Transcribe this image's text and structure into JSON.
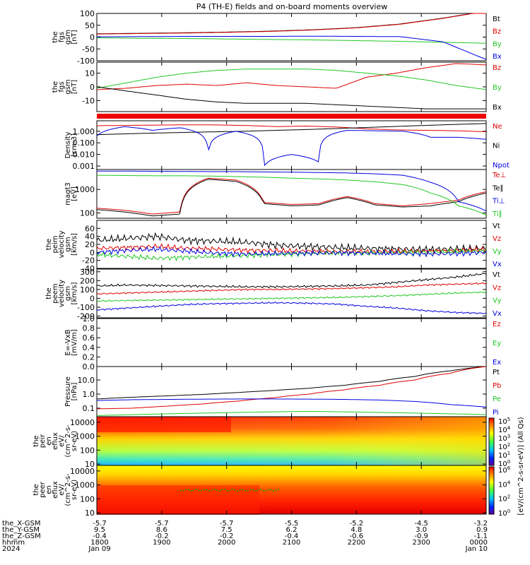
{
  "title": "P4 (TH-E) fields and on-board moments overview",
  "colors": {
    "black": "#000000",
    "red": "#e00000",
    "green": "#22c822",
    "blue": "#0000e0"
  },
  "chart_data": [
    {
      "type": "line",
      "panel": "fgs_gsm_1",
      "ylabel": [
        "the",
        "fgs",
        "gsm",
        "[nT]"
      ],
      "ylim": [
        -100,
        100
      ],
      "yticks": [
        -100,
        -50,
        0,
        50,
        100
      ],
      "series": [
        {
          "name": "Bt",
          "color": "#000000",
          "values": [
            14,
            16,
            18,
            21,
            25,
            31,
            40,
            55,
            80,
            110
          ]
        },
        {
          "name": "Bz",
          "color": "#e00000",
          "values": [
            13,
            15,
            17,
            20,
            24,
            30,
            39,
            54,
            79,
            109
          ]
        },
        {
          "name": "By",
          "color": "#22c822",
          "values": [
            -3,
            -5,
            -6,
            -8,
            -10,
            -12,
            -15,
            -18,
            -22,
            -26
          ]
        },
        {
          "name": "Bx",
          "color": "#0000e0",
          "values": [
            1,
            2,
            3,
            3,
            3,
            4,
            3,
            2,
            -20,
            -95
          ]
        }
      ]
    },
    {
      "type": "line",
      "panel": "fgs_gsm_2",
      "ylabel": [
        "the",
        "fgs",
        "gsm",
        "[nT]"
      ],
      "ylim": [
        -18,
        18
      ],
      "yticks": [
        -10,
        0,
        10
      ],
      "series": [
        {
          "name": "Bz",
          "color": "#e00000",
          "values": [
            -2,
            -1,
            1,
            2,
            1,
            3,
            1,
            0,
            -1,
            7,
            10,
            14,
            17,
            16
          ]
        },
        {
          "name": "By",
          "color": "#22c822",
          "values": [
            -1,
            3,
            7,
            10,
            12,
            13,
            13,
            13,
            12,
            10,
            8,
            5,
            1,
            -2
          ]
        },
        {
          "name": "Bx",
          "color": "#000000",
          "values": [
            0,
            -3,
            -6,
            -9,
            -11,
            -12,
            -12,
            -12,
            -13,
            -14,
            -15,
            -16,
            -16,
            -16
          ]
        }
      ]
    },
    {
      "type": "line",
      "panel": "density",
      "ylabel": [
        "Density",
        "[cm-3]"
      ],
      "scale": "log",
      "ylim": [
        0.0005,
        8
      ],
      "yticks": [
        0.001,
        0.01,
        0.1,
        1.0
      ],
      "tick_labels": [
        "0.001",
        "0.010",
        "0.100",
        "1.000"
      ],
      "series": [
        {
          "name": "Ne",
          "color": "#e00000",
          "values": [
            3,
            3.2,
            3.4,
            3.6,
            3.5,
            3.1,
            2.5,
            2.8,
            2.3,
            1.6,
            1.3,
            1.2,
            1.1,
            0.9
          ]
        },
        {
          "name": "Ni",
          "color": "#000000",
          "values": [
            0.5,
            0.6,
            0.7,
            0.8,
            0.9,
            1.0,
            1.2,
            1.4,
            1.7,
            2.1,
            2.6,
            3.2,
            3.9,
            4.6
          ]
        },
        {
          "name": "Npot",
          "color": "#0000e0",
          "values": [
            0.4,
            2.5,
            1.2,
            2.0,
            0.001,
            1.0,
            0.0008,
            0.01,
            0.002,
            1.2,
            1.1,
            1.0,
            0.3,
            0.3,
            0.2
          ]
        }
      ]
    },
    {
      "type": "line",
      "panel": "temperature",
      "ylabel": [
        "magt3",
        "[eV]"
      ],
      "scale": "log",
      "ylim": [
        60,
        7000
      ],
      "yticks": [
        100,
        1000
      ],
      "tick_labels": [
        "100",
        "1000"
      ],
      "series": [
        {
          "name": "Te⊥",
          "color": "#e00000",
          "values": [
            160,
            130,
            90,
            110,
            3000,
            2500,
            280,
            230,
            250,
            500,
            250,
            200,
            250,
            350,
            800
          ]
        },
        {
          "name": "Te∥",
          "color": "#000000",
          "values": [
            140,
            110,
            75,
            90,
            2700,
            2200,
            250,
            200,
            220,
            450,
            220,
            180,
            200,
            300,
            700
          ]
        },
        {
          "name": "Ti⊥",
          "color": "#0000e0",
          "values": [
            6000,
            6000,
            5900,
            5800,
            5700,
            5700,
            5500,
            5400,
            5200,
            5000,
            4600,
            4000,
            2000,
            300,
            120
          ]
        },
        {
          "name": "Ti∥",
          "color": "#22c822",
          "values": [
            4000,
            3900,
            3800,
            3800,
            3700,
            3500,
            3300,
            3000,
            2800,
            2500,
            2100,
            1600,
            700,
            200,
            80
          ]
        }
      ]
    },
    {
      "type": "line",
      "panel": "peim_velocity",
      "ylabel": [
        "the",
        "peim",
        "velocity",
        "gsm",
        "[km/s]"
      ],
      "ylim": [
        -40,
        80
      ],
      "yticks": [
        -40,
        -20,
        0,
        20,
        40,
        60
      ],
      "series": [
        {
          "name": "Vt",
          "color": "#000000",
          "values": [
            30,
            35,
            40,
            30,
            28,
            25,
            18,
            15,
            12,
            10,
            8,
            7,
            8,
            10
          ]
        },
        {
          "name": "Vz",
          "color": "#e00000",
          "values": [
            10,
            12,
            15,
            10,
            8,
            5,
            4,
            3,
            2,
            2,
            2,
            3,
            5,
            8
          ]
        },
        {
          "name": "Vy",
          "color": "#22c822",
          "values": [
            -5,
            -10,
            -15,
            -12,
            -10,
            -8,
            -5,
            -3,
            -2,
            -1,
            0,
            0,
            2,
            4
          ]
        },
        {
          "name": "Vx",
          "color": "#0000e0",
          "values": [
            0,
            5,
            8,
            3,
            -2,
            -4,
            -3,
            -2,
            -1,
            -2,
            -3,
            -4,
            -3,
            0
          ]
        }
      ]
    },
    {
      "type": "line",
      "panel": "peem_velocity",
      "ylabel": [
        "the",
        "peem",
        "velocity",
        "gsm",
        "[km/s]"
      ],
      "ylim": [
        -220,
        330
      ],
      "yticks": [
        -200,
        -100,
        0,
        100,
        200,
        300
      ],
      "series": [
        {
          "name": "Vt",
          "color": "#000000",
          "values": [
            140,
            150,
            145,
            140,
            135,
            130,
            130,
            135,
            140,
            150,
            180,
            210,
            240,
            280
          ]
        },
        {
          "name": "Vz",
          "color": "#e00000",
          "values": [
            50,
            60,
            70,
            80,
            90,
            100,
            100,
            105,
            110,
            120,
            130,
            150,
            160,
            170
          ]
        },
        {
          "name": "Vy",
          "color": "#22c822",
          "values": [
            -30,
            -25,
            -20,
            -15,
            -10,
            -5,
            0,
            5,
            10,
            20,
            30,
            45,
            60,
            70
          ]
        },
        {
          "name": "Vx",
          "color": "#0000e0",
          "values": [
            -130,
            -110,
            -90,
            -70,
            -60,
            -55,
            -50,
            -55,
            -65,
            -90,
            -110,
            -140,
            -160,
            -170
          ]
        }
      ]
    },
    {
      "type": "line",
      "panel": "efield",
      "ylabel": [
        "E=-VxB",
        "[mV/m]"
      ],
      "ylim": [
        0,
        1
      ],
      "yticks": [
        0.0,
        0.2,
        0.4,
        0.6,
        0.8,
        1.0
      ],
      "tick_labels": [
        "0.0",
        "0.2",
        "0.4",
        "0.6",
        "0.8",
        "1.0"
      ],
      "series": [
        {
          "name": "Ez",
          "color": "#e00000",
          "values": []
        },
        {
          "name": "Ey",
          "color": "#22c822",
          "values": []
        },
        {
          "name": "Ex",
          "color": "#0000e0",
          "values": []
        }
      ]
    },
    {
      "type": "line",
      "panel": "pressure",
      "ylabel": [
        "Pressure",
        "[nPa]"
      ],
      "scale": "log",
      "ylim": [
        0.025,
        90
      ],
      "yticks": [
        0.1,
        1.0,
        10.0
      ],
      "tick_labels": [
        "0.1",
        "1.0",
        "10.0"
      ],
      "series": [
        {
          "name": "Pt",
          "color": "#000000",
          "values": [
            0.45,
            0.6,
            0.75,
            0.95,
            1.3,
            1.8,
            2.6,
            4.2,
            8,
            18,
            45,
            90
          ]
        },
        {
          "name": "Pb",
          "color": "#e00000",
          "values": [
            0.09,
            0.1,
            0.14,
            0.2,
            0.32,
            0.55,
            1.0,
            2.0,
            4.2,
            10,
            30,
            90
          ]
        },
        {
          "name": "Pe",
          "color": "#22c822",
          "values": [
            0.03,
            0.035,
            0.04,
            0.045,
            0.05,
            0.055,
            0.06,
            0.055,
            0.05,
            0.045,
            0.04,
            0.035
          ]
        },
        {
          "name": "Pi",
          "color": "#0000e0",
          "values": [
            0.35,
            0.4,
            0.42,
            0.44,
            0.45,
            0.45,
            0.44,
            0.42,
            0.38,
            0.3,
            0.18,
            0.12
          ]
        }
      ]
    },
    {
      "type": "heatmap",
      "panel": "peir_eflux",
      "ylabel": [
        "the",
        "peir",
        "en",
        "eflux",
        "eV/",
        "(cm^2-s-",
        "sr-eV)"
      ],
      "scale": "log",
      "ylim": [
        8,
        25000
      ],
      "yticks": [
        10,
        100,
        1000,
        10000
      ],
      "tick_labels": [
        "10",
        "100",
        "1000",
        "10000"
      ]
    },
    {
      "type": "heatmap",
      "panel": "peer_eflux",
      "ylabel": [
        "the",
        "peer",
        "en",
        "eflux",
        "eV/",
        "(cm^2-s-",
        "sr-eV)"
      ],
      "scale": "log",
      "ylim": [
        8,
        25000
      ],
      "yticks": [
        10,
        100,
        1000,
        10000
      ],
      "tick_labels": [
        "10",
        "100",
        "1000",
        "10000"
      ]
    }
  ],
  "colorbar": {
    "label": "[eV/(cm^2-s-sr-eV)] (All Qs)",
    "upper_ticks": [
      "10",
      "10",
      "10",
      "10",
      "10",
      "10"
    ],
    "upper_exps": [
      "0",
      "1",
      "2",
      "3",
      "4",
      "5"
    ],
    "lower_ticks": [
      "10",
      "10",
      "10",
      "10"
    ],
    "lower_exps": [
      "0",
      "2",
      "4",
      "6"
    ]
  },
  "xaxis": {
    "row_labels": [
      "the_X-GSM",
      "the_Y-GSM",
      "the_Z-GSM",
      "hhmm",
      "2024"
    ],
    "columns": [
      [
        "-5.7",
        "9.5",
        "-0.4",
        "1800",
        "Jan 09"
      ],
      [
        "-5.7",
        "8.6",
        "-0.2",
        "1900",
        ""
      ],
      [
        "-5.7",
        "7.5",
        "-0.2",
        "2000",
        ""
      ],
      [
        "-5.5",
        "6.2",
        "-0.4",
        "2100",
        ""
      ],
      [
        "-5.2",
        "4.8",
        "-0.6",
        "2200",
        ""
      ],
      [
        "-4.5",
        "3.0",
        "-0.9",
        "2300",
        ""
      ],
      [
        "-3.2",
        "0.9",
        "-1.1",
        "0000",
        "Jan 10"
      ]
    ]
  }
}
